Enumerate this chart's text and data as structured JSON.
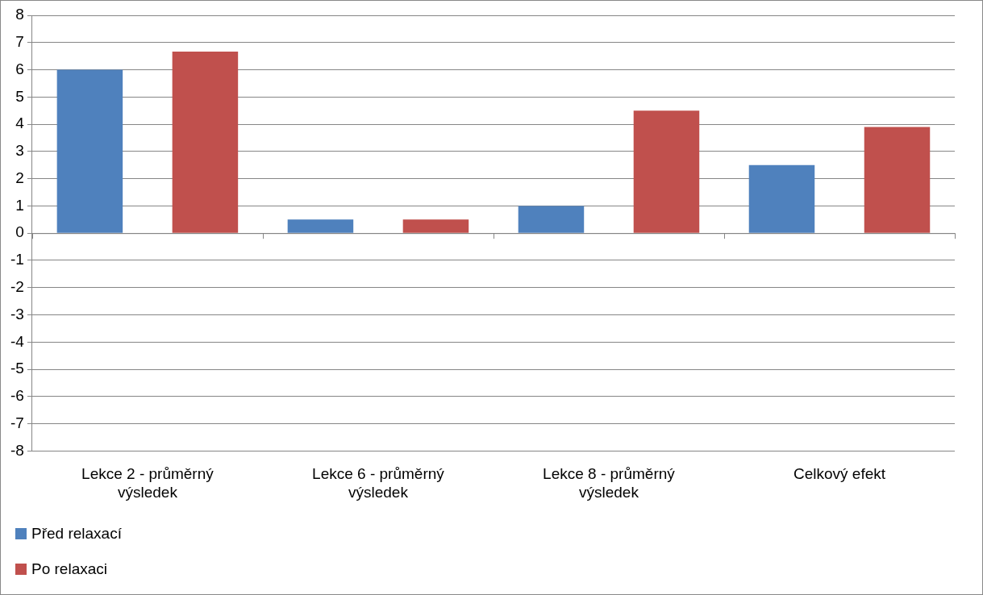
{
  "chart_data": {
    "type": "bar",
    "categories": [
      "Lekce 2 - průměrný výsledek",
      "Lekce 6 - průměrný výsledek",
      "Lekce 8 - průměrný výsledek",
      "Celkový efekt"
    ],
    "series": [
      {
        "name": "Před relaxací",
        "color": "#4f81bd",
        "values": [
          6,
          0.5,
          1,
          2.5
        ]
      },
      {
        "name": "Po relaxaci",
        "color": "#c0504d",
        "values": [
          6.67,
          0.5,
          4.5,
          3.9
        ]
      }
    ],
    "ylim": [
      -8,
      8
    ],
    "yticks": [
      -8,
      -7,
      -6,
      -5,
      -4,
      -3,
      -2,
      -1,
      0,
      1,
      2,
      3,
      4,
      5,
      6,
      7,
      8
    ],
    "grid": "y",
    "legend": "bottom left"
  }
}
